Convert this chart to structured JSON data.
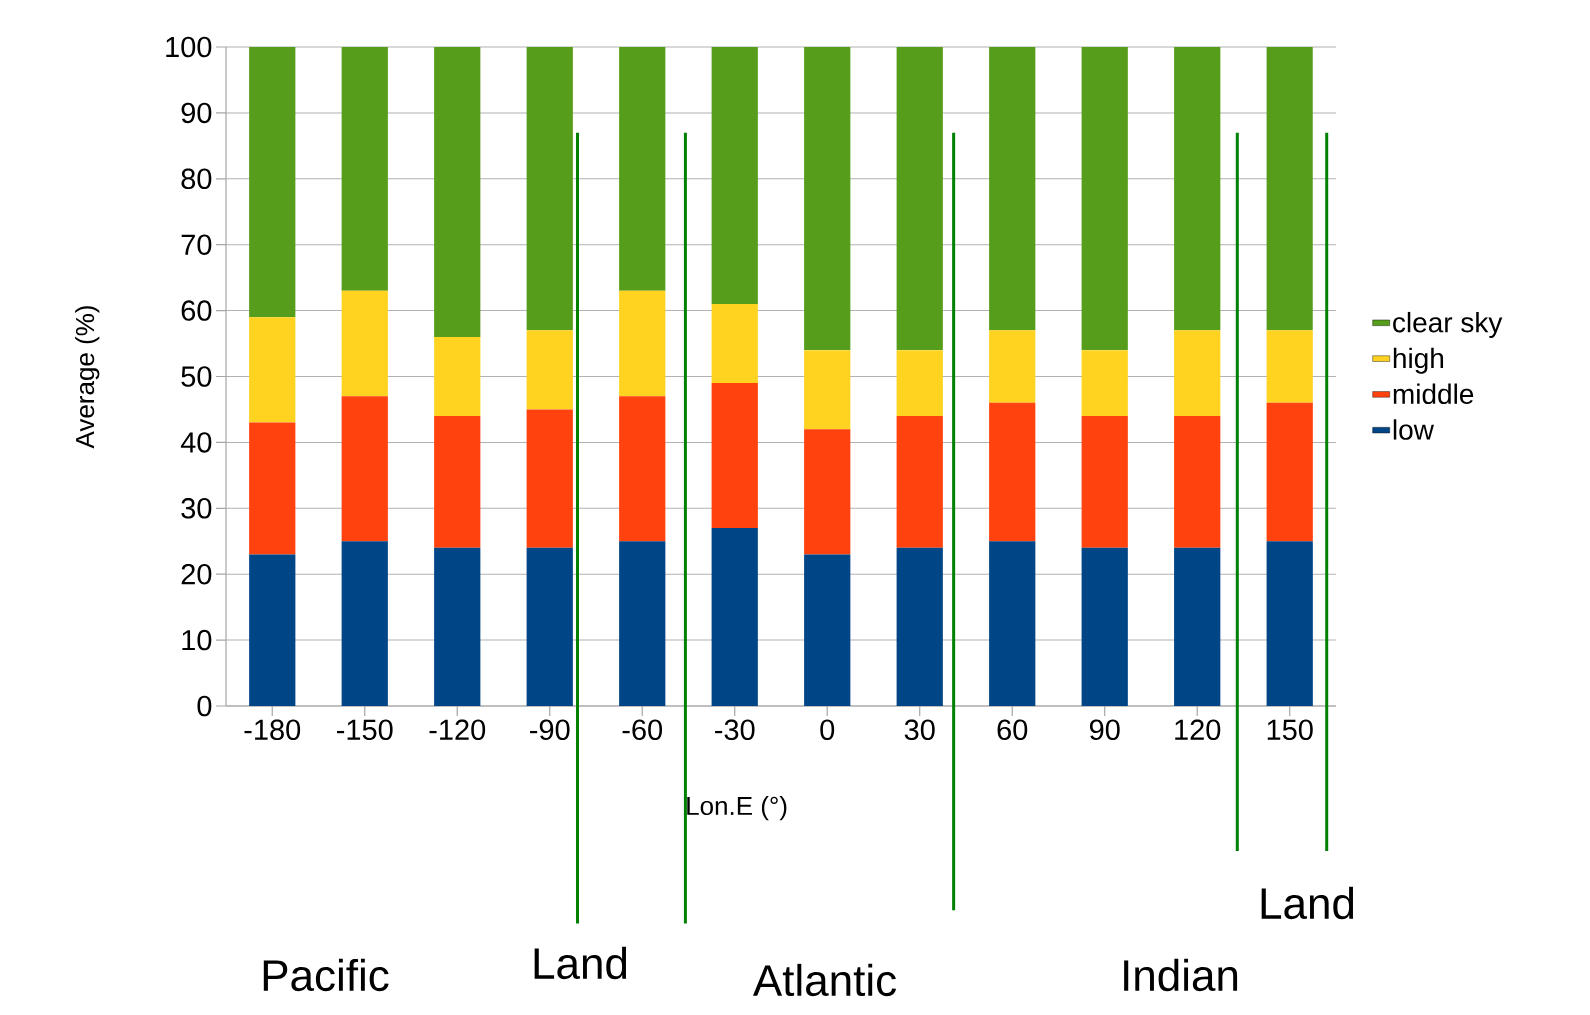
{
  "chart_data": {
    "type": "bar",
    "stacked": true,
    "xlabel": "Lon.E (°)",
    "ylabel": "Average (%)",
    "x": [
      -180,
      -150,
      -120,
      -90,
      -60,
      -30,
      0,
      30,
      60,
      90,
      120,
      150
    ],
    "xlim": [
      -195,
      165
    ],
    "xticks": [
      -180,
      -150,
      -120,
      -90,
      -60,
      -30,
      0,
      30,
      60,
      90,
      120,
      150
    ],
    "ylim": [
      0,
      100
    ],
    "yticks": [
      0,
      10,
      20,
      30,
      40,
      50,
      60,
      70,
      80,
      90,
      100
    ],
    "grid": "y",
    "legend": "right",
    "series": [
      {
        "name": "low",
        "color": "#004586",
        "values": [
          23,
          25,
          24,
          24,
          25,
          27,
          23,
          24,
          25,
          24,
          24,
          25
        ]
      },
      {
        "name": "middle",
        "color": "#ff420e",
        "values": [
          20,
          22,
          20,
          21,
          22,
          22,
          19,
          20,
          21,
          20,
          20,
          21
        ]
      },
      {
        "name": "high",
        "color": "#ffd320",
        "values": [
          16,
          16,
          12,
          12,
          16,
          12,
          12,
          10,
          11,
          10,
          13,
          11
        ]
      },
      {
        "name": "clear sky",
        "color": "#579d1c",
        "values": [
          41,
          37,
          44,
          43,
          37,
          39,
          46,
          46,
          43,
          46,
          43,
          43
        ]
      }
    ],
    "ref_lines": [
      {
        "axis": "x",
        "value": -81,
        "color": "#008000"
      },
      {
        "axis": "x",
        "value": -46,
        "color": "#008000"
      },
      {
        "axis": "x",
        "value": 41,
        "color": "#008000"
      },
      {
        "axis": "x",
        "value": 133,
        "color": "#008000"
      },
      {
        "axis": "x",
        "value": 162,
        "color": "#008000"
      }
    ],
    "annotations": [
      "Pacific",
      "Land",
      "Atlantic",
      "Indian",
      "Land"
    ]
  }
}
